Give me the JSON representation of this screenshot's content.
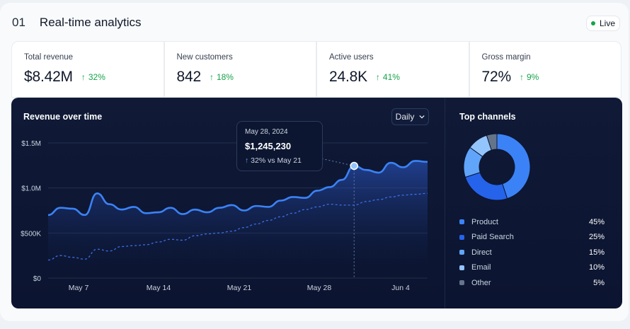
{
  "header": {
    "number": "01",
    "title": "Real-time analytics",
    "live_label": "Live"
  },
  "kpis": [
    {
      "label": "Total revenue",
      "value": "$8.42M",
      "delta": "32%"
    },
    {
      "label": "New customers",
      "value": "842",
      "delta": "18%"
    },
    {
      "label": "Active users",
      "value": "24.8K",
      "delta": "41%"
    },
    {
      "label": "Gross margin",
      "value": "72%",
      "delta": "9%"
    }
  ],
  "revenue": {
    "title": "Revenue over time",
    "range_selector": "Daily",
    "tooltip": {
      "date": "May 28, 2024",
      "amount": "$1,245,230",
      "delta": "32%",
      "comparison": "vs May 21"
    }
  },
  "channels": {
    "title": "Top channels",
    "items": [
      {
        "name": "Product",
        "pct": "45%",
        "color": "#3b82f6"
      },
      {
        "name": "Paid Search",
        "pct": "25%",
        "color": "#2563eb"
      },
      {
        "name": "Direct",
        "pct": "15%",
        "color": "#60a5fa"
      },
      {
        "name": "Email",
        "pct": "10%",
        "color": "#93c5fd"
      },
      {
        "name": "Other",
        "pct": "5%",
        "color": "#64748b"
      }
    ]
  },
  "colors": {
    "accent": "#3b82f6",
    "positive": "#16a34a",
    "panel_bg": "#0d1631"
  },
  "chart_data": [
    {
      "type": "area",
      "title": "Revenue over time",
      "yticks": [
        "$0",
        "$500K",
        "$1.0M",
        "$1.5M"
      ],
      "xticks": [
        "May 7",
        "May 14",
        "May 21",
        "May 28",
        "Jun 4"
      ],
      "ylim": [
        0,
        1500000
      ],
      "x_first": "May 4",
      "series": [
        {
          "values": [
            700000,
            780000,
            770000,
            700000,
            940000,
            820000,
            760000,
            790000,
            720000,
            730000,
            780000,
            710000,
            760000,
            730000,
            780000,
            810000,
            750000,
            800000,
            790000,
            860000,
            900000,
            890000,
            970000,
            1010000,
            1090000,
            1245000,
            1200000,
            1170000,
            1280000,
            1230000,
            1300000,
            1290000
          ]
        },
        {
          "values": [
            200000,
            250000,
            230000,
            210000,
            320000,
            300000,
            350000,
            360000,
            370000,
            400000,
            430000,
            420000,
            470000,
            490000,
            500000,
            520000,
            560000,
            600000,
            640000,
            680000,
            720000,
            760000,
            790000,
            820000,
            810000,
            810000,
            850000,
            870000,
            900000,
            920000,
            930000,
            940000
          ]
        }
      ]
    },
    {
      "type": "pie",
      "title": "Top channels",
      "categories": [
        "Product",
        "Paid Search",
        "Direct",
        "Email",
        "Other"
      ],
      "values": [
        45,
        25,
        15,
        10,
        5
      ]
    }
  ]
}
